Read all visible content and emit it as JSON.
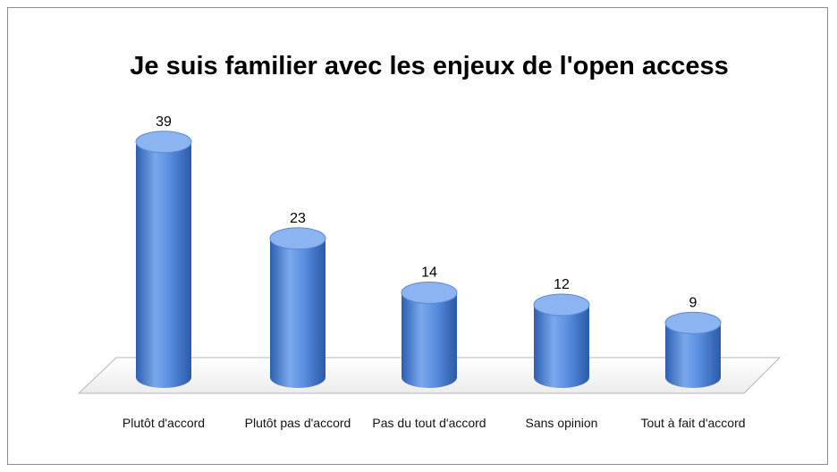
{
  "chart_data": {
    "type": "bar",
    "title": "Je suis familier avec les enjeux de l'open access",
    "categories": [
      "Plutôt d'accord",
      "Plutôt pas d'accord",
      "Pas du tout d'accord",
      "Sans opinion",
      "Tout à fait d'accord"
    ],
    "values": [
      39,
      23,
      14,
      12,
      9
    ],
    "color": "#4a7fd0"
  }
}
